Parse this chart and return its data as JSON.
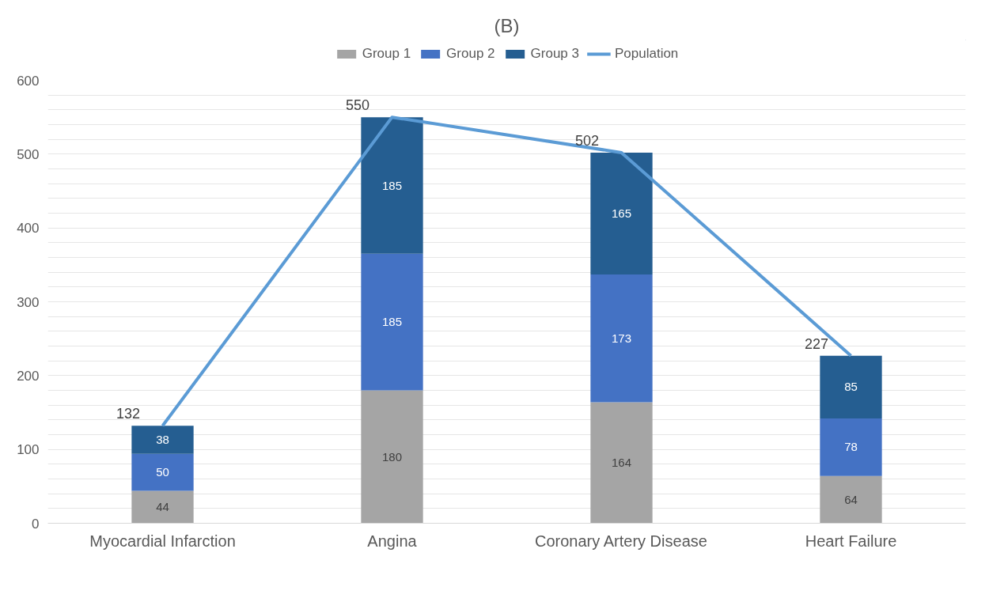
{
  "chart_data": {
    "type": "bar",
    "title": "(B)",
    "stacked": true,
    "data_labels": true,
    "legend": "top",
    "grid": "y",
    "categories": [
      "Myocardial Infarction",
      "Angina",
      "Coronary Artery Disease",
      "Heart Failure"
    ],
    "series": [
      {
        "name": "Group 1",
        "color": "#a5a5a5",
        "values": [
          44,
          180,
          164,
          64
        ]
      },
      {
        "name": "Group 2",
        "color": "#4472c4",
        "values": [
          50,
          185,
          173,
          78
        ]
      },
      {
        "name": "Group 3",
        "color": "#255e91",
        "values": [
          38,
          185,
          165,
          85
        ]
      },
      {
        "name": "Population",
        "type": "line",
        "color": "#5b9bd5",
        "values": [
          132,
          550,
          502,
          227
        ]
      }
    ],
    "ylim": [
      0,
      600
    ],
    "yticks": [
      0,
      {
        "value": 20,
        "label": null
      },
      {
        "value": 40,
        "label": null
      },
      {
        "value": 60,
        "label": null
      },
      {
        "value": 80,
        "label": null
      },
      100,
      {
        "value": 120,
        "label": null
      },
      {
        "value": 140,
        "label": null
      },
      {
        "value": 160,
        "label": null
      },
      {
        "value": 180,
        "label": null
      },
      200,
      {
        "value": 220,
        "label": null
      },
      {
        "value": 240,
        "label": null
      },
      {
        "value": 260,
        "label": null
      },
      {
        "value": 280,
        "label": null
      },
      300,
      {
        "value": 320,
        "label": null
      },
      {
        "value": 340,
        "label": null
      },
      {
        "value": 360,
        "label": null
      },
      {
        "value": 380,
        "label": null
      },
      400,
      {
        "value": 420,
        "label": null
      },
      {
        "value": 440,
        "label": null
      },
      {
        "value": 460,
        "label": null
      },
      {
        "value": 480,
        "label": null
      },
      500,
      {
        "value": 520,
        "label": null
      },
      {
        "value": 540,
        "label": null
      },
      {
        "value": 560,
        "label": null
      },
      {
        "value": 580,
        "label": null
      },
      600
    ]
  }
}
